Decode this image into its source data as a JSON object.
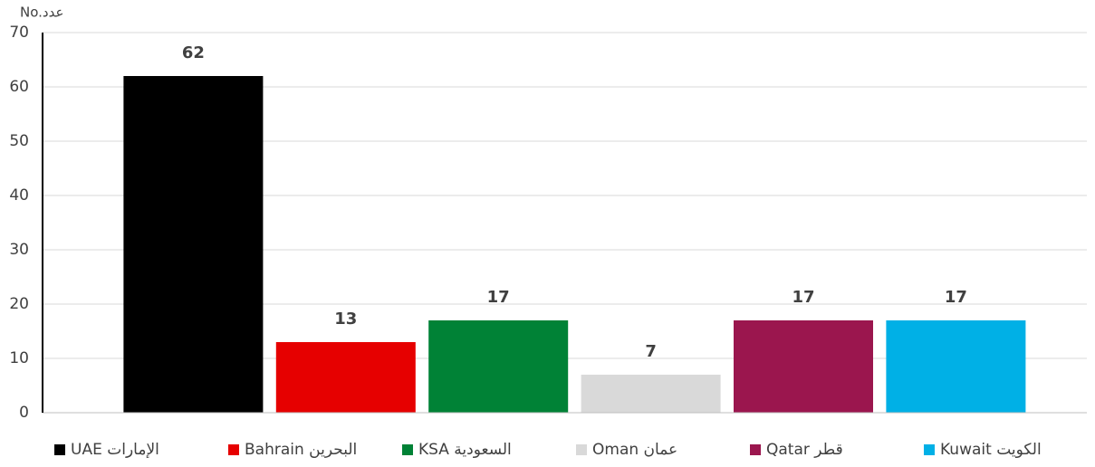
{
  "chart_data": {
    "type": "bar",
    "y_label": "No.عدد",
    "categories": [
      "UAE الإمارات",
      "Bahrain البحرين",
      "KSA السعودية",
      "Oman عمان",
      "Qatar قطر",
      "Kuwait الكويت"
    ],
    "values": [
      62,
      13,
      17,
      7,
      17,
      17
    ],
    "colors": [
      "#000000",
      "#e60000",
      "#008236",
      "#d9d9d9",
      "#9b164e",
      "#00b0e6"
    ],
    "ylim": [
      0,
      70
    ],
    "yticks": [
      0,
      10,
      20,
      30,
      40,
      50,
      60,
      70
    ],
    "grid": true,
    "legend": "bottom"
  }
}
